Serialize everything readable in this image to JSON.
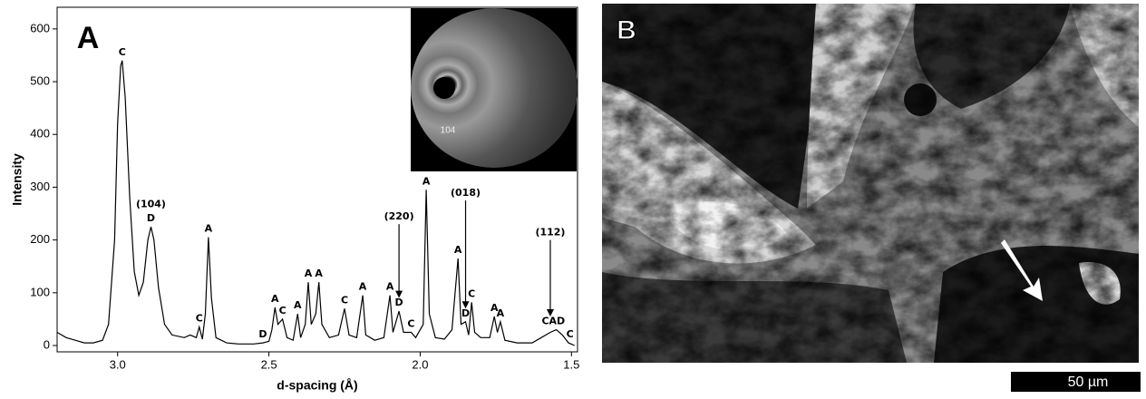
{
  "chart_data": {
    "type": "line",
    "panel_label": "A",
    "x_label": "d-spacing (Å)",
    "y_label": "Intensity",
    "color": "#000000",
    "xlim": [
      3.2,
      1.48
    ],
    "ylim": [
      -12,
      641
    ],
    "xticks": [
      {
        "value": 3,
        "label": "3.0"
      },
      2.5,
      {
        "value": 2,
        "label": "2.0"
      },
      1.5
    ],
    "yticks": [
      0,
      100,
      200,
      300,
      400,
      500,
      600
    ],
    "x": [
      3.2,
      3.17,
      3.14,
      3.11,
      3.08,
      3.05,
      3.03,
      3.01,
      3.0,
      2.99,
      2.985,
      2.975,
      2.96,
      2.945,
      2.93,
      2.915,
      2.9,
      2.89,
      2.88,
      2.865,
      2.845,
      2.82,
      2.78,
      2.76,
      2.74,
      2.73,
      2.72,
      2.71,
      2.7,
      2.69,
      2.675,
      2.64,
      2.6,
      2.55,
      2.52,
      2.5,
      2.49,
      2.48,
      2.47,
      2.455,
      2.44,
      2.42,
      2.405,
      2.395,
      2.38,
      2.37,
      2.36,
      2.345,
      2.335,
      2.325,
      2.3,
      2.27,
      2.25,
      2.235,
      2.21,
      2.19,
      2.18,
      2.15,
      2.12,
      2.1,
      2.09,
      2.07,
      2.055,
      2.03,
      2.015,
      1.99,
      1.98,
      1.97,
      1.95,
      1.92,
      1.895,
      1.875,
      1.865,
      1.85,
      1.84,
      1.83,
      1.82,
      1.8,
      1.77,
      1.755,
      1.745,
      1.735,
      1.72,
      1.68,
      1.63,
      1.6,
      1.57,
      1.55,
      1.53,
      1.51,
      1.49
    ],
    "values": [
      25,
      15,
      10,
      5,
      5,
      10,
      40,
      200,
      420,
      530,
      540,
      470,
      280,
      140,
      95,
      120,
      200,
      225,
      200,
      110,
      40,
      20,
      15,
      20,
      15,
      35,
      12,
      60,
      205,
      90,
      15,
      5,
      3,
      3,
      5,
      8,
      30,
      72,
      40,
      50,
      15,
      10,
      60,
      15,
      40,
      120,
      40,
      60,
      120,
      40,
      15,
      20,
      70,
      20,
      15,
      95,
      20,
      10,
      15,
      95,
      25,
      65,
      25,
      25,
      15,
      40,
      295,
      60,
      15,
      12,
      30,
      165,
      40,
      45,
      20,
      82,
      25,
      15,
      15,
      55,
      25,
      45,
      10,
      5,
      5,
      15,
      25,
      30,
      20,
      5,
      0
    ],
    "annotations": [
      {
        "text": "C",
        "x": 2.985,
        "y": 540
      },
      {
        "text": "D",
        "x": 2.89,
        "y": 225
      },
      {
        "text": "(104)",
        "x": 2.89,
        "y": 252
      },
      {
        "text": "C",
        "x": 2.73,
        "y": 35
      },
      {
        "text": "A",
        "x": 2.7,
        "y": 205
      },
      {
        "text": "D",
        "x": 2.52,
        "y": 5
      },
      {
        "text": "A",
        "x": 2.48,
        "y": 72
      },
      {
        "text": "C",
        "x": 2.455,
        "y": 50
      },
      {
        "text": "A",
        "x": 2.405,
        "y": 60
      },
      {
        "text": "A",
        "x": 2.37,
        "y": 120
      },
      {
        "text": "A",
        "x": 2.335,
        "y": 120
      },
      {
        "text": "C",
        "x": 2.25,
        "y": 70
      },
      {
        "text": "A",
        "x": 2.19,
        "y": 95
      },
      {
        "text": "A",
        "x": 2.1,
        "y": 95
      },
      {
        "text": "D",
        "x": 2.07,
        "y": 65
      },
      {
        "text": "C",
        "x": 2.03,
        "y": 25
      },
      {
        "text": "A",
        "x": 1.98,
        "y": 295
      },
      {
        "text": "A",
        "x": 1.875,
        "y": 165
      },
      {
        "text": "D",
        "x": 1.85,
        "y": 45
      },
      {
        "text": "C",
        "x": 1.83,
        "y": 82
      },
      {
        "text": "A",
        "x": 1.755,
        "y": 55
      },
      {
        "text": "A",
        "x": 1.735,
        "y": 45
      },
      {
        "text": "CAD",
        "x": 1.56,
        "y": 30
      },
      {
        "text": "C",
        "x": 1.505,
        "y": 5
      }
    ],
    "arrows": [
      {
        "text": "(220)",
        "x": 2.07,
        "y": 230,
        "to": 90
      },
      {
        "text": "(018)",
        "x": 1.85,
        "y": 275,
        "to": 70
      },
      {
        "text": "(112)",
        "x": 1.57,
        "y": 200,
        "to": 55
      }
    ],
    "inset_label": "104"
  },
  "panel_b": {
    "label": "B",
    "scale_bar": "50 µm"
  }
}
